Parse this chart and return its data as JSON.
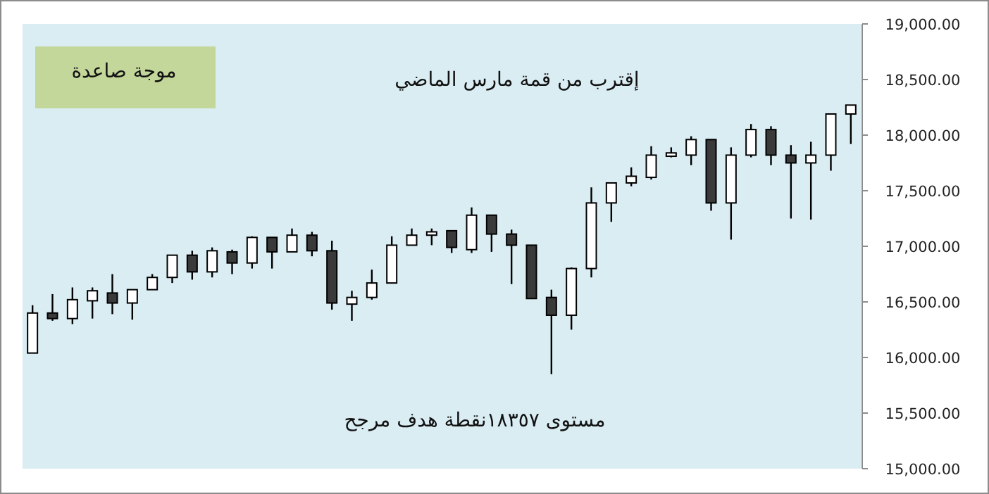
{
  "chart_data": {
    "type": "candlestick",
    "categories": [
      null,
      null,
      null,
      null,
      null,
      null,
      null,
      null,
      null,
      null,
      null,
      null,
      null,
      null,
      null,
      null,
      null,
      null,
      null,
      null,
      null,
      null,
      null,
      null,
      null,
      null,
      null,
      null,
      null,
      null,
      null,
      null,
      null,
      null,
      null,
      null,
      null,
      null,
      null,
      null,
      null,
      null
    ],
    "ohlc": [
      [
        16040,
        16470,
        16040,
        16400
      ],
      [
        16400,
        16570,
        16330,
        16350
      ],
      [
        16350,
        16630,
        16300,
        16520
      ],
      [
        16510,
        16630,
        16350,
        16600
      ],
      [
        16580,
        16750,
        16390,
        16490
      ],
      [
        16490,
        16610,
        16340,
        16610
      ],
      [
        16610,
        16750,
        16610,
        16720
      ],
      [
        16720,
        16920,
        16670,
        16920
      ],
      [
        16920,
        16960,
        16700,
        16770
      ],
      [
        16770,
        16990,
        16720,
        16960
      ],
      [
        16950,
        16970,
        16750,
        16850
      ],
      [
        16850,
        17090,
        16800,
        17080
      ],
      [
        17080,
        17080,
        16800,
        16950
      ],
      [
        16950,
        17160,
        16950,
        17100
      ],
      [
        17100,
        17130,
        16910,
        16960
      ],
      [
        16960,
        17050,
        16430,
        16490
      ],
      [
        16480,
        16600,
        16330,
        16540
      ],
      [
        16540,
        16790,
        16520,
        16670
      ],
      [
        16670,
        17090,
        16670,
        17010
      ],
      [
        17010,
        17160,
        17010,
        17100
      ],
      [
        17100,
        17160,
        17010,
        17130
      ],
      [
        17140,
        17140,
        16940,
        16990
      ],
      [
        16970,
        17350,
        16940,
        17280
      ],
      [
        17280,
        17280,
        16950,
        17110
      ],
      [
        17110,
        17150,
        16660,
        17010
      ],
      [
        17010,
        17010,
        16530,
        16530
      ],
      [
        16540,
        16610,
        15850,
        16380
      ],
      [
        16380,
        16810,
        16250,
        16800
      ],
      [
        16800,
        17530,
        16720,
        17390
      ],
      [
        17390,
        17570,
        17220,
        17570
      ],
      [
        17570,
        17710,
        17540,
        17630
      ],
      [
        17620,
        17900,
        17600,
        17820
      ],
      [
        17810,
        17890,
        17800,
        17840
      ],
      [
        17820,
        17990,
        17730,
        17960
      ],
      [
        17960,
        17960,
        17320,
        17390
      ],
      [
        17390,
        17890,
        17060,
        17820
      ],
      [
        17820,
        18100,
        17800,
        18050
      ],
      [
        18050,
        18080,
        17730,
        17820
      ],
      [
        17820,
        17910,
        17250,
        17750
      ],
      [
        17750,
        17940,
        17240,
        17820
      ],
      [
        17820,
        18190,
        17680,
        18190
      ],
      [
        18190,
        18270,
        17920,
        18270
      ]
    ],
    "ylim": [
      15000,
      19000
    ],
    "yticks": [
      {
        "value": 15000,
        "label": "15,000.00"
      },
      {
        "value": 15500,
        "label": "15,500.00"
      },
      {
        "value": 16000,
        "label": "16,000.00"
      },
      {
        "value": 16500,
        "label": "16,500.00"
      },
      {
        "value": 17000,
        "label": "17,000.00"
      },
      {
        "value": 17500,
        "label": "17,500.00"
      },
      {
        "value": 18000,
        "label": "18,000.00"
      },
      {
        "value": 18500,
        "label": "18,500.00"
      },
      {
        "value": 19000,
        "label": "19,000.00"
      }
    ],
    "annotations": [
      "موجة صاعدة",
      "إقترب من قمة مارس الماضي",
      "مستوى ١٨٣٥٧نقطة هدف مرجح"
    ]
  }
}
